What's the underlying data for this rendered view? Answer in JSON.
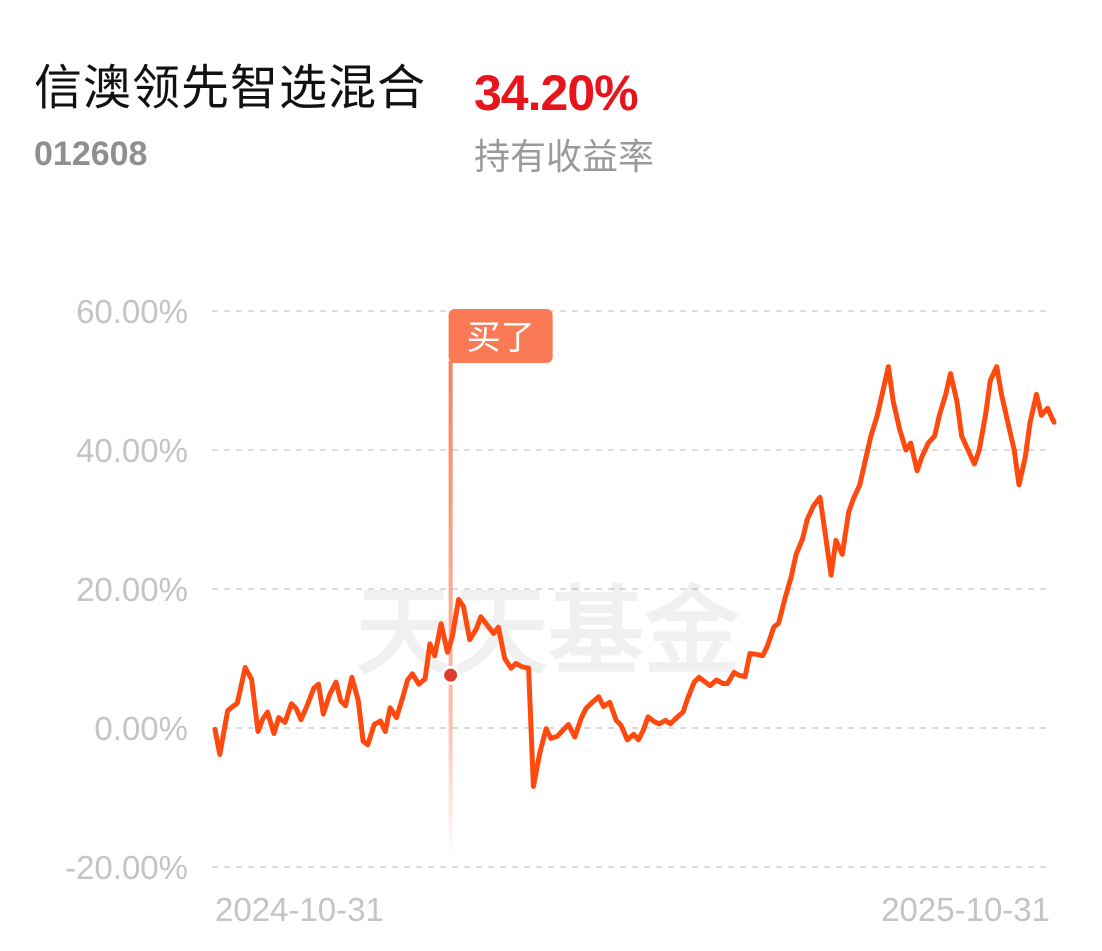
{
  "header": {
    "fund_name": "信澳领先智选混合",
    "fund_code": "012608",
    "return_value": "34.20%",
    "return_label": "持有收益率"
  },
  "colors": {
    "line": "#ff4a0f",
    "return_value": "#e8141b",
    "buy_marker": "#fa7a55",
    "grid": "#dcdcdc",
    "axis_text": "#c4c4c4"
  },
  "watermark": "天天基金",
  "chart_data": {
    "type": "line",
    "title": "",
    "xlabel": "",
    "ylabel": "",
    "ylim": [
      -20,
      60
    ],
    "y_ticks": [
      60,
      40,
      20,
      0,
      -20
    ],
    "y_tick_labels": [
      "60.00%",
      "40.00%",
      "20.00%",
      "0.00%",
      "-20.00%"
    ],
    "x_range": [
      "2024-06-05",
      "2025-11-14"
    ],
    "x_tick_labels": [
      "2024-10-31",
      "2025-10-31"
    ],
    "x_ticks": [
      "2024-10-31",
      "2025-10-31"
    ],
    "grid": true,
    "series": [
      {
        "x": [
          "2024-06-05",
          "2024-06-08",
          "2024-06-13",
          "2024-06-19",
          "2024-06-24",
          "2024-06-28",
          "2024-07-02",
          "2024-07-05",
          "2024-07-08",
          "2024-07-12",
          "2024-07-15",
          "2024-07-19",
          "2024-07-23",
          "2024-07-26",
          "2024-07-29",
          "2024-08-02",
          "2024-08-06",
          "2024-08-09",
          "2024-08-12",
          "2024-08-16",
          "2024-08-20",
          "2024-08-23",
          "2024-08-26",
          "2024-08-30",
          "2024-09-03",
          "2024-09-06",
          "2024-09-09",
          "2024-09-13",
          "2024-09-17",
          "2024-09-20",
          "2024-09-23",
          "2024-09-27",
          "2024-10-01",
          "2024-10-04",
          "2024-10-07",
          "2024-10-11",
          "2024-10-15",
          "2024-10-18",
          "2024-10-21",
          "2024-10-25",
          "2024-10-29",
          "2024-11-01",
          "2024-11-05",
          "2024-11-08",
          "2024-11-12",
          "2024-11-16",
          "2024-11-19",
          "2024-11-23",
          "2024-11-27",
          "2024-11-30",
          "2024-12-04",
          "2024-12-08",
          "2024-12-11",
          "2024-12-15",
          "2024-12-19",
          "2024-12-22",
          "2024-12-26",
          "2024-12-30",
          "2025-01-02",
          "2025-01-06",
          "2025-01-10",
          "2025-01-13",
          "2025-01-17",
          "2025-01-21",
          "2025-01-24",
          "2025-01-28",
          "2025-02-01",
          "2025-02-04",
          "2025-02-08",
          "2025-02-12",
          "2025-02-15",
          "2025-02-19",
          "2025-02-23",
          "2025-02-26",
          "2025-03-01",
          "2025-03-04",
          "2025-03-08",
          "2025-03-11",
          "2025-03-15",
          "2025-03-18",
          "2025-03-22",
          "2025-03-26",
          "2025-03-29",
          "2025-04-02",
          "2025-04-05",
          "2025-04-09",
          "2025-04-12",
          "2025-04-16",
          "2025-04-20",
          "2025-04-23",
          "2025-04-27",
          "2025-04-30",
          "2025-05-04",
          "2025-05-07",
          "2025-05-11",
          "2025-05-15",
          "2025-05-18",
          "2025-05-22",
          "2025-05-25",
          "2025-05-29",
          "2025-06-02",
          "2025-06-05",
          "2025-06-09",
          "2025-06-12",
          "2025-06-16",
          "2025-06-20",
          "2025-06-23",
          "2025-06-27",
          "2025-06-30",
          "2025-07-04",
          "2025-07-08",
          "2025-07-11",
          "2025-07-15",
          "2025-07-18",
          "2025-07-22",
          "2025-07-26",
          "2025-07-29",
          "2025-08-02",
          "2025-08-05",
          "2025-08-09",
          "2025-08-13",
          "2025-08-16",
          "2025-08-20",
          "2025-08-23",
          "2025-08-27",
          "2025-08-31",
          "2025-09-03",
          "2025-09-07",
          "2025-09-10",
          "2025-09-14",
          "2025-09-17",
          "2025-09-21",
          "2025-09-25",
          "2025-09-28",
          "2025-10-02",
          "2025-10-05",
          "2025-10-09",
          "2025-10-12",
          "2025-10-16",
          "2025-10-20",
          "2025-10-23",
          "2025-10-27",
          "2025-10-30",
          "2025-11-03",
          "2025-11-06",
          "2025-11-10",
          "2025-11-14"
        ],
        "y": [
          -0.2,
          -3.8,
          2.5,
          3.6,
          8.7,
          7.0,
          -0.5,
          1.3,
          2.3,
          -0.8,
          1.5,
          0.8,
          3.5,
          2.8,
          1.2,
          3.3,
          5.7,
          6.3,
          2.0,
          4.8,
          6.6,
          3.9,
          3.2,
          7.3,
          3.9,
          -1.9,
          -2.4,
          0.5,
          1.0,
          -0.5,
          2.9,
          1.5,
          4.5,
          6.9,
          7.8,
          6.3,
          7.1,
          12.1,
          10.4,
          15.0,
          10.9,
          13.1,
          18.5,
          17.5,
          12.7,
          14.2,
          16.0,
          14.8,
          13.6,
          14.5,
          10.0,
          8.6,
          9.3,
          8.8,
          8.6,
          -8.4,
          -3.6,
          -0.1,
          -1.5,
          -1.2,
          -0.2,
          0.5,
          -1.3,
          1.4,
          2.8,
          3.7,
          4.5,
          3.1,
          3.7,
          1.1,
          0.4,
          -1.7,
          -0.9,
          -1.7,
          -0.3,
          1.6,
          0.9,
          0.6,
          1.1,
          0.6,
          1.5,
          2.3,
          4.3,
          6.6,
          7.3,
          6.6,
          6.1,
          6.9,
          6.4,
          6.4,
          8.0,
          7.6,
          7.4,
          10.7,
          10.6,
          10.4,
          11.8,
          14.5,
          15.1,
          18.6,
          21.8,
          25.0,
          27.2,
          30.0,
          32.0,
          33.2,
          28.5,
          22.0,
          27.0,
          25.0,
          31.0,
          33.0,
          35.0,
          38.0,
          42.0,
          45.0,
          48.0,
          52.0,
          47.0,
          43.0,
          40.0,
          41.0,
          37.0,
          39.0,
          41.0,
          42.0,
          45.0,
          48.0,
          51.0,
          47.0,
          42.0,
          40.0,
          38.0,
          40.0,
          45.0,
          50.0,
          52.0,
          48.0,
          44.0,
          40.0,
          35.0,
          39.0,
          44.0,
          48.0,
          45.0,
          46.0,
          44.0
        ]
      }
    ],
    "buy_marker": {
      "date": "2024-10-31",
      "value": 7.6,
      "label": "买了"
    }
  }
}
